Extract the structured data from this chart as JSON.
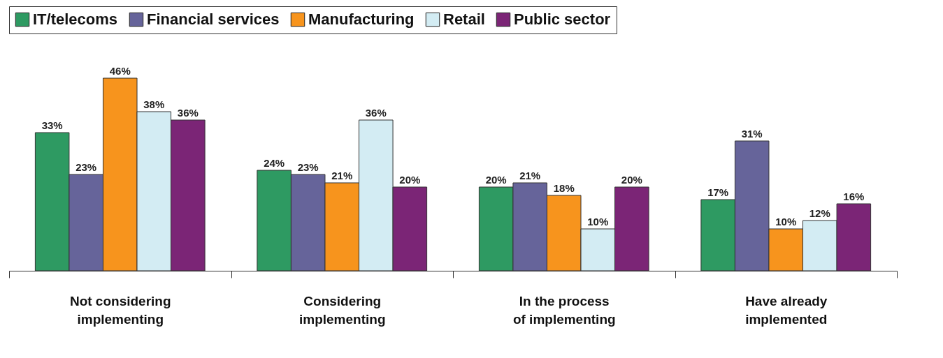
{
  "chart_data": {
    "type": "bar",
    "categories": [
      "Not considering implementing",
      "Considering implementing",
      "In the process of implementing",
      "Have already implemented"
    ],
    "series": [
      {
        "name": "IT/telecoms",
        "color": "#2e9a62",
        "values": [
          33,
          24,
          20,
          17
        ],
        "value_labels": [
          "33%",
          "24%",
          "20%",
          "17%"
        ]
      },
      {
        "name": "Financial services",
        "color": "#66649a",
        "values": [
          23,
          23,
          21,
          31
        ],
        "value_labels": [
          "23%",
          "23%",
          "21%",
          "31%"
        ]
      },
      {
        "name": "Manufacturing",
        "color": "#f7941d",
        "values": [
          46,
          21,
          18,
          10
        ],
        "value_labels": [
          "46%",
          "21%",
          "18%",
          "10%"
        ]
      },
      {
        "name": "Retail",
        "color": "#d3ecf3",
        "values": [
          38,
          36,
          10,
          12
        ],
        "value_labels": [
          "38%",
          "36%",
          "10%",
          "12%"
        ]
      },
      {
        "name": "Public sector",
        "color": "#7b2576",
        "values": [
          36,
          20,
          20,
          16
        ],
        "value_labels": [
          "36%",
          "20%",
          "20%",
          "16%"
        ]
      }
    ],
    "legend": "top",
    "grid": false
  }
}
